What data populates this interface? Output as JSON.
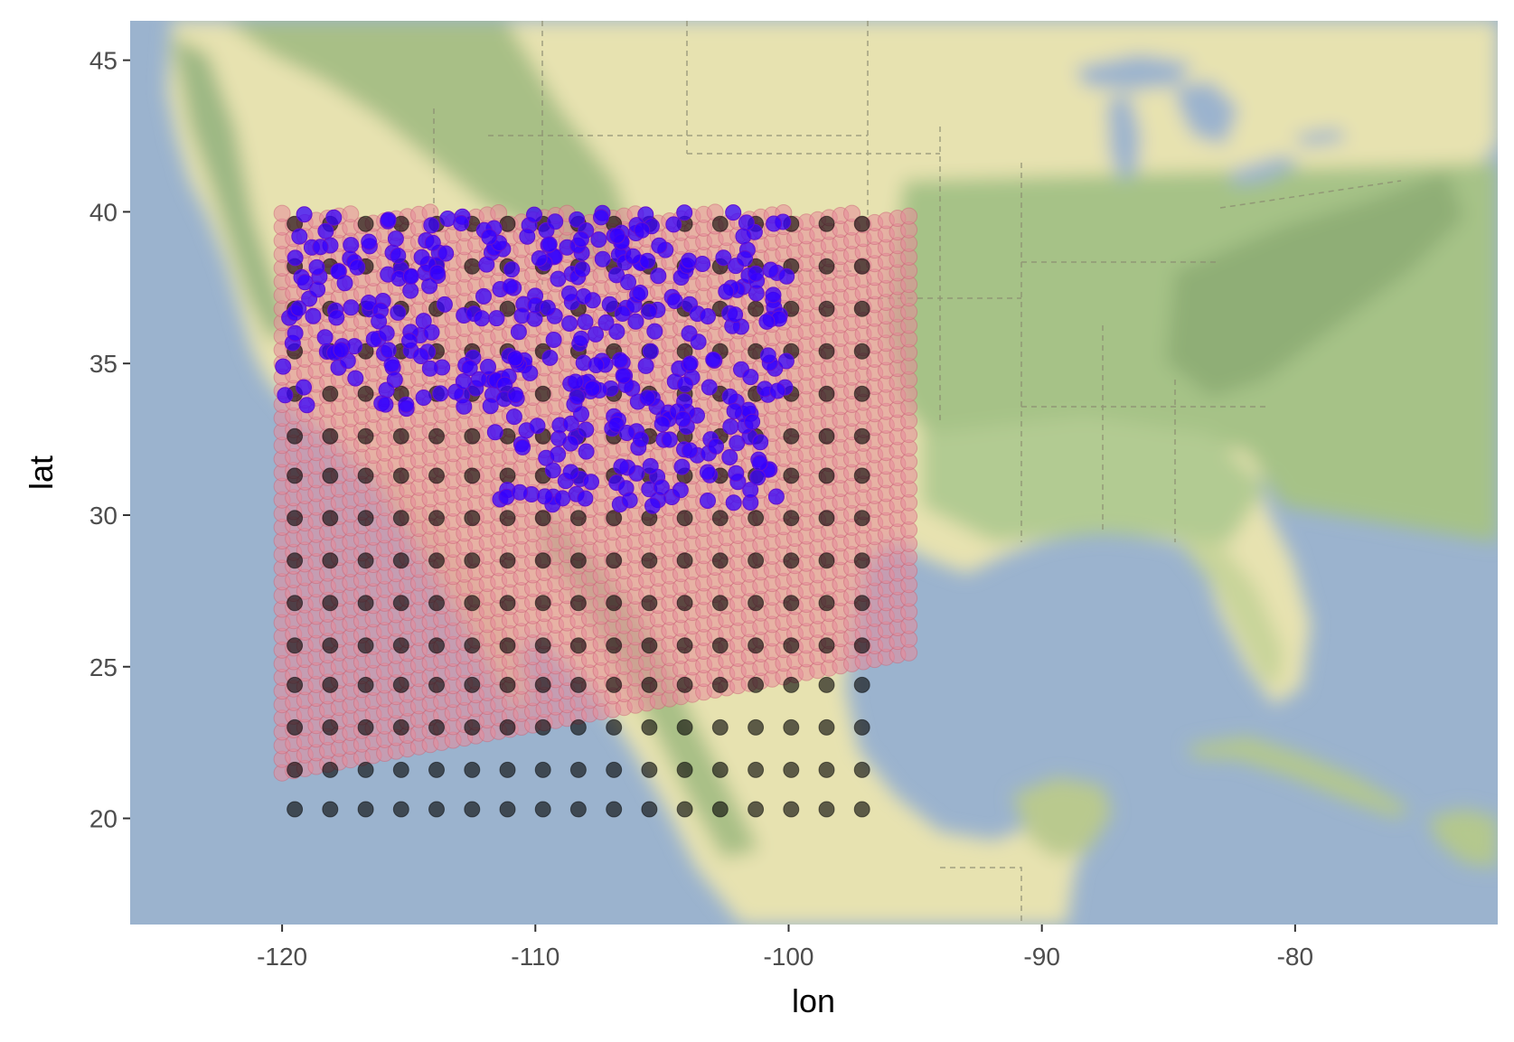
{
  "chart_data": {
    "type": "scatter",
    "title": "",
    "xlabel": "lon",
    "ylabel": "lat",
    "xlim": [
      -126,
      -72
    ],
    "ylim": [
      16.5,
      46.3
    ],
    "x_ticks": [
      -120,
      -110,
      -100,
      -90,
      -80
    ],
    "x_tick_labels": [
      "-120",
      "-110",
      "-100",
      "-90",
      "-80"
    ],
    "y_ticks": [
      20,
      25,
      30,
      35,
      40,
      45
    ],
    "y_tick_labels": [
      "20",
      "25",
      "30",
      "35",
      "40",
      "45"
    ],
    "background": "basemap terrain (western hemisphere: USA, Mexico, Gulf of Mexico, Caribbean)",
    "grid": false,
    "legend": "none",
    "series": [
      {
        "role": "coarse-grid-points",
        "color": "#000000",
        "opacity": 0.6,
        "lon_start": -119.5,
        "lon_step": 1.4,
        "lon_count": 17,
        "lat_values": [
          20.3,
          21.6,
          23.0,
          24.4,
          25.7,
          27.1,
          28.5,
          29.9,
          31.3,
          32.6,
          34.0,
          35.4,
          36.8,
          38.2,
          39.6
        ]
      },
      {
        "role": "fine-grid-points",
        "color": "#e88a9a",
        "opacity": 0.55,
        "outline": "#cc6677",
        "lon_range": [
          -120,
          -95
        ],
        "lat_range_west": [
          21.5,
          40
        ],
        "lat_range_east": [
          25.5,
          40
        ],
        "spacing_deg": 0.45
      },
      {
        "role": "observation-points",
        "color": "#3300ff",
        "outline": "#6611cc",
        "count": 420,
        "lon_range": [
          -120,
          -100
        ],
        "lat_range": [
          30.3,
          40
        ]
      }
    ]
  },
  "colors": {
    "ocean": "#9bb3ce",
    "land_low": "#e7e2b0",
    "land_green": "#a9c18a",
    "land_dark": "#7e9a6a",
    "tick": "#4d4d4d"
  }
}
